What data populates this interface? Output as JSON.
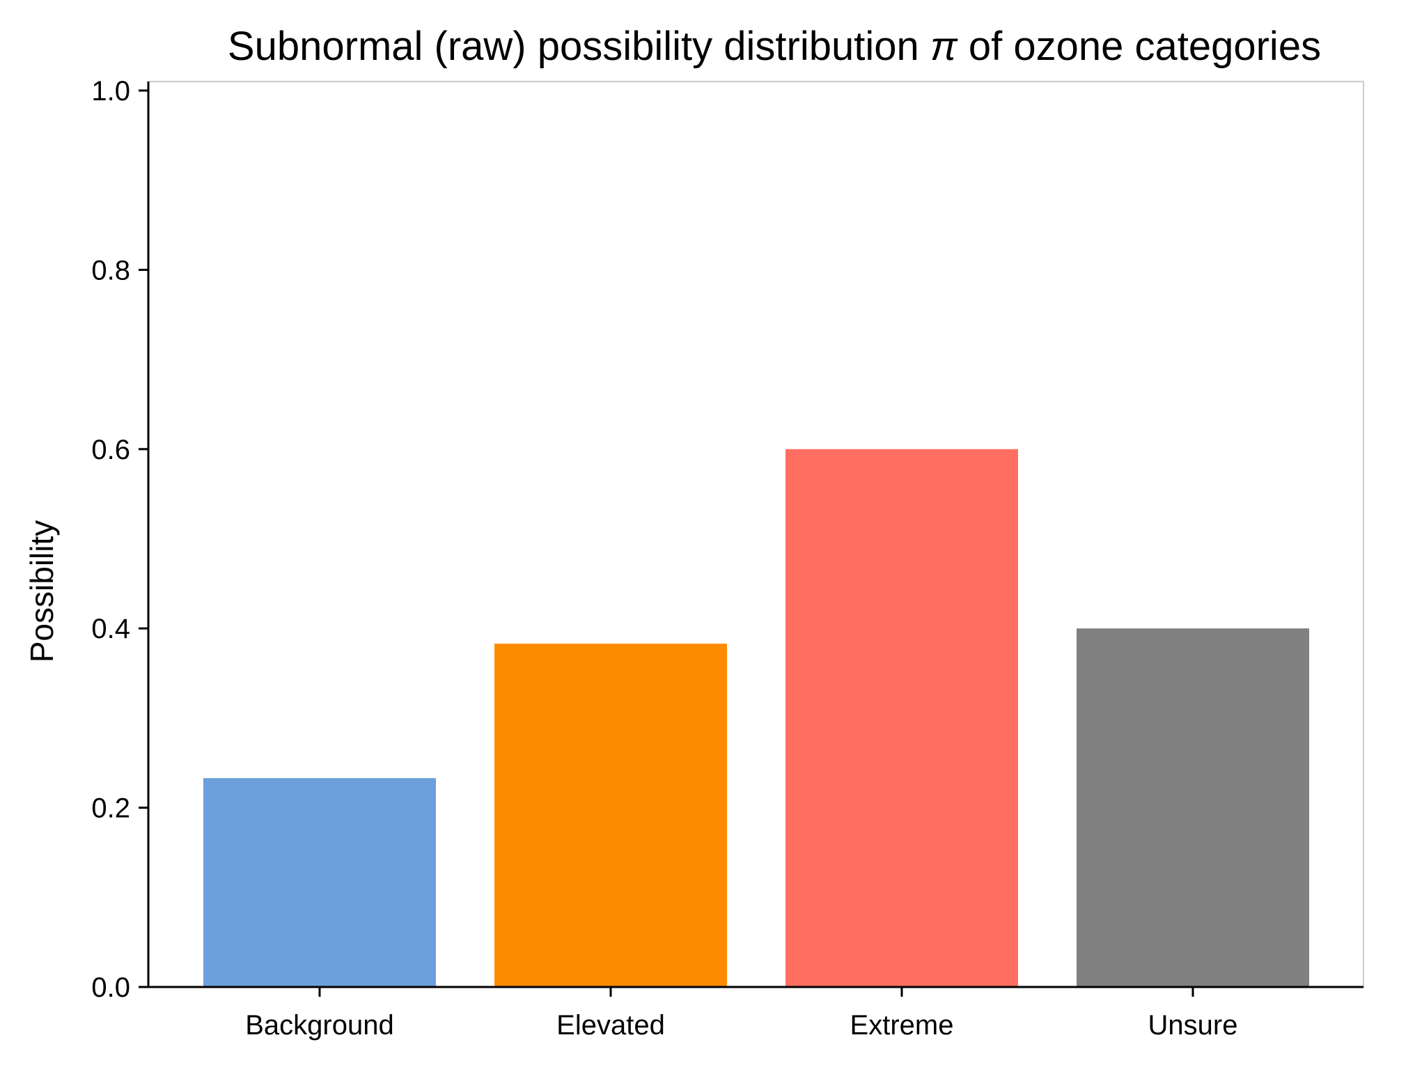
{
  "chart_data": {
    "type": "bar",
    "title_prefix": "Subnormal (raw) possibility distribution ",
    "title_symbol": "π",
    "title_suffix": " of ozone categories",
    "xlabel": "",
    "ylabel": "Possibility",
    "categories": [
      "Background",
      "Elevated",
      "Extreme",
      "Unsure"
    ],
    "values": [
      0.233,
      0.383,
      0.6,
      0.4
    ],
    "colors": [
      "#6CA0DC",
      "#FF8C00",
      "#FF6F61",
      "#808080"
    ],
    "ylim": [
      0,
      1.0
    ],
    "yticks": [
      0.0,
      0.2,
      0.4,
      0.6,
      0.8,
      1.0
    ],
    "ytick_labels": [
      "0.0",
      "0.2",
      "0.4",
      "0.6",
      "0.8",
      "1.0"
    ],
    "grid": false,
    "legend": "none"
  }
}
